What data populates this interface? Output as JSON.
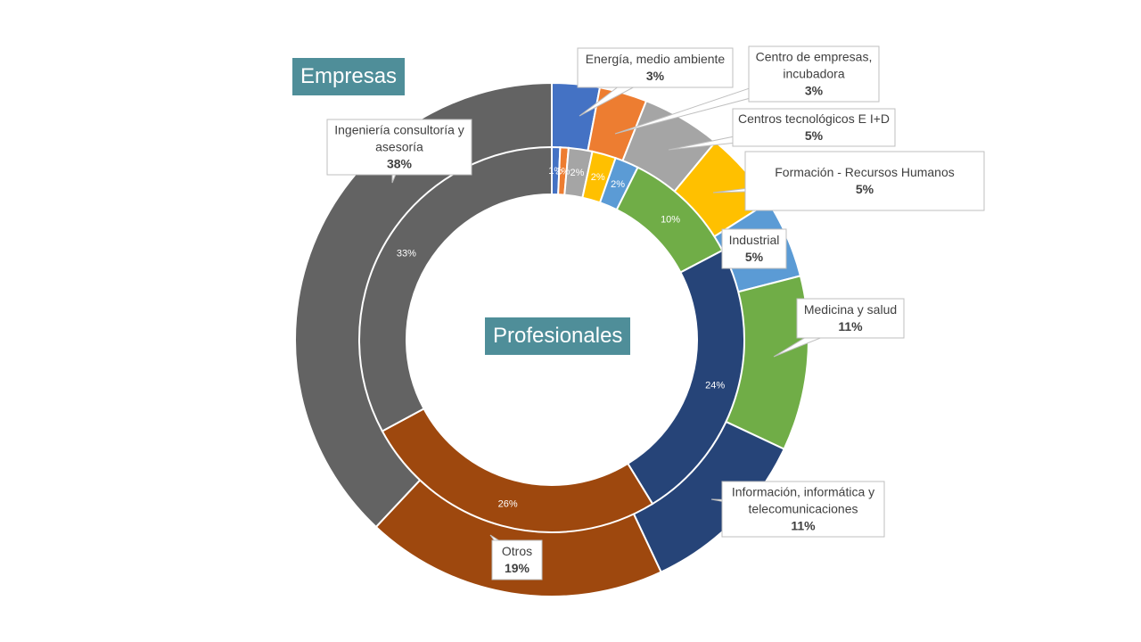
{
  "labels": {
    "outer_ring": "Empresas",
    "inner_ring": "Profesionales"
  },
  "colors": {
    "blue": "#4472c4",
    "orange": "#ed7d31",
    "gray": "#a5a5a5",
    "gold": "#ffc000",
    "lightblue": "#5b9bd5",
    "green": "#70ad47",
    "navy": "#264478",
    "brown": "#9e480e",
    "darkgray": "#636363",
    "tag_bg": "#4f8e99"
  },
  "chart_data": {
    "type": "donut",
    "categories": [
      "Energía, medio ambiente",
      "Centro de empresas, incubadora",
      "Centros tecnológicos E I+D",
      "Formación - Recursos Humanos",
      "Industrial",
      "Medicina y salud",
      "Información, informática y telecomunicaciones",
      "Otros",
      "Ingeniería consultoría y asesoría"
    ],
    "series": [
      {
        "name": "Empresas",
        "values": [
          3,
          3,
          5,
          5,
          5,
          11,
          11,
          19,
          38
        ],
        "labels": [
          "3%",
          "3%",
          "5%",
          "5%",
          "5%",
          "11%",
          "11%",
          "19%",
          "38%"
        ],
        "label_text": [
          [
            "Energía, medio ambiente"
          ],
          [
            "Centro de empresas,",
            "incubadora"
          ],
          [
            "Centros tecnológicos E I+D"
          ],
          [
            "Formación  - Recursos Humanos"
          ],
          [
            "Industrial"
          ],
          [
            "Medicina y salud"
          ],
          [
            "Información, informática y",
            "telecomunicaciones"
          ],
          [
            "Otros"
          ],
          [
            "Ingeniería consultoría y",
            "asesoría"
          ]
        ]
      },
      {
        "name": "Profesionales",
        "values": [
          0.7,
          0.7,
          2,
          2,
          2,
          10,
          24,
          26,
          33
        ],
        "labels": [
          "1%",
          "1%",
          "2%",
          "2%",
          "2%",
          "10%",
          "24%",
          "26%",
          "33%"
        ]
      }
    ]
  }
}
